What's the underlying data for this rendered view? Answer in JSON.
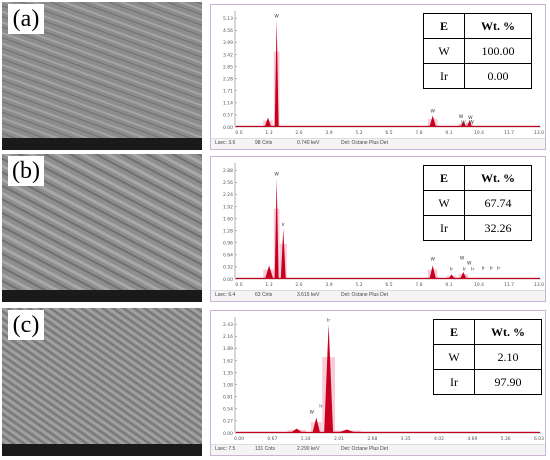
{
  "table_header": {
    "element": "E",
    "weight": "Wt. %"
  },
  "chart_data": [
    {
      "type": "bar",
      "panel_label": "(a)",
      "ylim": [
        0,
        5.6
      ],
      "yticks": [
        "0.00",
        "0.57",
        "1.14",
        "1.71",
        "2.28",
        "2.85",
        "3.42",
        "3.99",
        "4.56",
        "5.13"
      ],
      "xlim": [
        0,
        13
      ],
      "xticks": [
        "0.0",
        "1.3",
        "2.6",
        "3.9",
        "5.2",
        "6.5",
        "7.8",
        "9.1",
        "10.4",
        "11.7",
        "13.0"
      ],
      "peaks": [
        {
          "x": 1.4,
          "y": 0.45,
          "width": 0.2
        },
        {
          "x": 1.77,
          "y": 5.2,
          "width": 0.12
        },
        {
          "x": 8.4,
          "y": 0.55,
          "width": 0.2
        },
        {
          "x": 9.7,
          "y": 0.25,
          "width": 0.2
        },
        {
          "x": 9.96,
          "y": 0.32,
          "width": 0.15
        }
      ],
      "peak_labels": [
        {
          "x": 1.77,
          "y": 5.25,
          "text": "W"
        },
        {
          "x": 8.4,
          "y": 0.65,
          "text": "W"
        },
        {
          "x": 9.6,
          "y": 0.38,
          "text": "W"
        },
        {
          "x": 10.0,
          "y": 0.33,
          "text": "W"
        },
        {
          "x": 9.7,
          "y": 0.1,
          "text": "W"
        },
        {
          "x": 10.05,
          "y": 0.12,
          "text": "W"
        }
      ],
      "composition": [
        {
          "element": "W",
          "wt": "100.00"
        },
        {
          "element": "Ir",
          "wt": "0.00"
        }
      ],
      "footer": {
        "lsec": "Lsec: 3.6",
        "cnts": "98 Cnts",
        "kev": "0.740 keV",
        "det": "Det: Octane Plus Det"
      }
    },
    {
      "type": "bar",
      "panel_label": "(b)",
      "ylim": [
        0,
        3.0
      ],
      "yticks": [
        "0.00",
        "0.32",
        "0.64",
        "0.96",
        "1.28",
        "1.60",
        "1.92",
        "2.24",
        "2.56",
        "2.88"
      ],
      "xlim": [
        0,
        13
      ],
      "xticks": [
        "0.0",
        "1.3",
        "2.6",
        "3.9",
        "5.2",
        "6.5",
        "7.8",
        "9.1",
        "10.4",
        "11.7",
        "13.0"
      ],
      "peaks": [
        {
          "x": 1.45,
          "y": 0.35,
          "width": 0.25
        },
        {
          "x": 1.77,
          "y": 2.6,
          "width": 0.12
        },
        {
          "x": 2.05,
          "y": 1.3,
          "width": 0.15
        },
        {
          "x": 8.4,
          "y": 0.35,
          "width": 0.2
        },
        {
          "x": 9.2,
          "y": 0.12,
          "width": 0.2
        },
        {
          "x": 9.7,
          "y": 0.18,
          "width": 0.2
        }
      ],
      "peak_labels": [
        {
          "x": 1.77,
          "y": 2.65,
          "text": "W"
        },
        {
          "x": 2.05,
          "y": 1.35,
          "text": "Ir"
        },
        {
          "x": 8.4,
          "y": 0.45,
          "text": "W"
        },
        {
          "x": 9.2,
          "y": 0.2,
          "text": "Ir"
        },
        {
          "x": 9.65,
          "y": 0.48,
          "text": "W"
        },
        {
          "x": 9.95,
          "y": 0.35,
          "text": "W"
        },
        {
          "x": 9.75,
          "y": 0.2,
          "text": "Ir"
        },
        {
          "x": 10.1,
          "y": 0.2,
          "text": "Ir"
        },
        {
          "x": 10.55,
          "y": 0.22,
          "text": "Ir"
        },
        {
          "x": 10.9,
          "y": 0.22,
          "text": "Ir"
        },
        {
          "x": 11.2,
          "y": 0.22,
          "text": "Ir"
        }
      ],
      "composition": [
        {
          "element": "W",
          "wt": "67.74"
        },
        {
          "element": "Ir",
          "wt": "32.26"
        }
      ],
      "footer": {
        "lsec": "Lsec: 6.4",
        "cnts": "63 Cnts",
        "kev": "3.615 keV",
        "det": "Det: Octane Plus Det"
      }
    },
    {
      "type": "bar",
      "panel_label": "(c)",
      "ylim": [
        0,
        2.62
      ],
      "yticks": [
        "0.00",
        "0.27",
        "0.54",
        "0.81",
        "1.08",
        "1.35",
        "1.62",
        "1.89",
        "2.16",
        "2.43"
      ],
      "xlim": [
        0,
        6.7
      ],
      "xticks": [
        "0.00",
        "0.67",
        "1.34",
        "2.01",
        "2.68",
        "3.35",
        "4.02",
        "4.69",
        "5.36",
        "6.03"
      ],
      "peaks": [
        {
          "x": 1.35,
          "y": 0.1,
          "width": 0.2
        },
        {
          "x": 1.78,
          "y": 0.35,
          "width": 0.12
        },
        {
          "x": 2.05,
          "y": 2.45,
          "width": 0.14
        },
        {
          "x": 2.45,
          "y": 0.08,
          "width": 0.3
        }
      ],
      "peak_labels": [
        {
          "x": 2.05,
          "y": 2.5,
          "text": "Ir"
        },
        {
          "x": 1.68,
          "y": 0.42,
          "text": "W"
        },
        {
          "x": 1.88,
          "y": 0.55,
          "text": "Ir"
        }
      ],
      "composition": [
        {
          "element": "W",
          "wt": "2.10"
        },
        {
          "element": "Ir",
          "wt": "97.90"
        }
      ],
      "footer": {
        "lsec": "Lsec: 7.5",
        "cnts": "131 Cnts",
        "kev": "2.290 keV",
        "det": "Det: Octane Plus Det"
      }
    }
  ],
  "colors": {
    "fill": "#c8001e",
    "halo": "#f2a9c2",
    "axis": "#7a7a7a",
    "tick_text": "#555555"
  }
}
